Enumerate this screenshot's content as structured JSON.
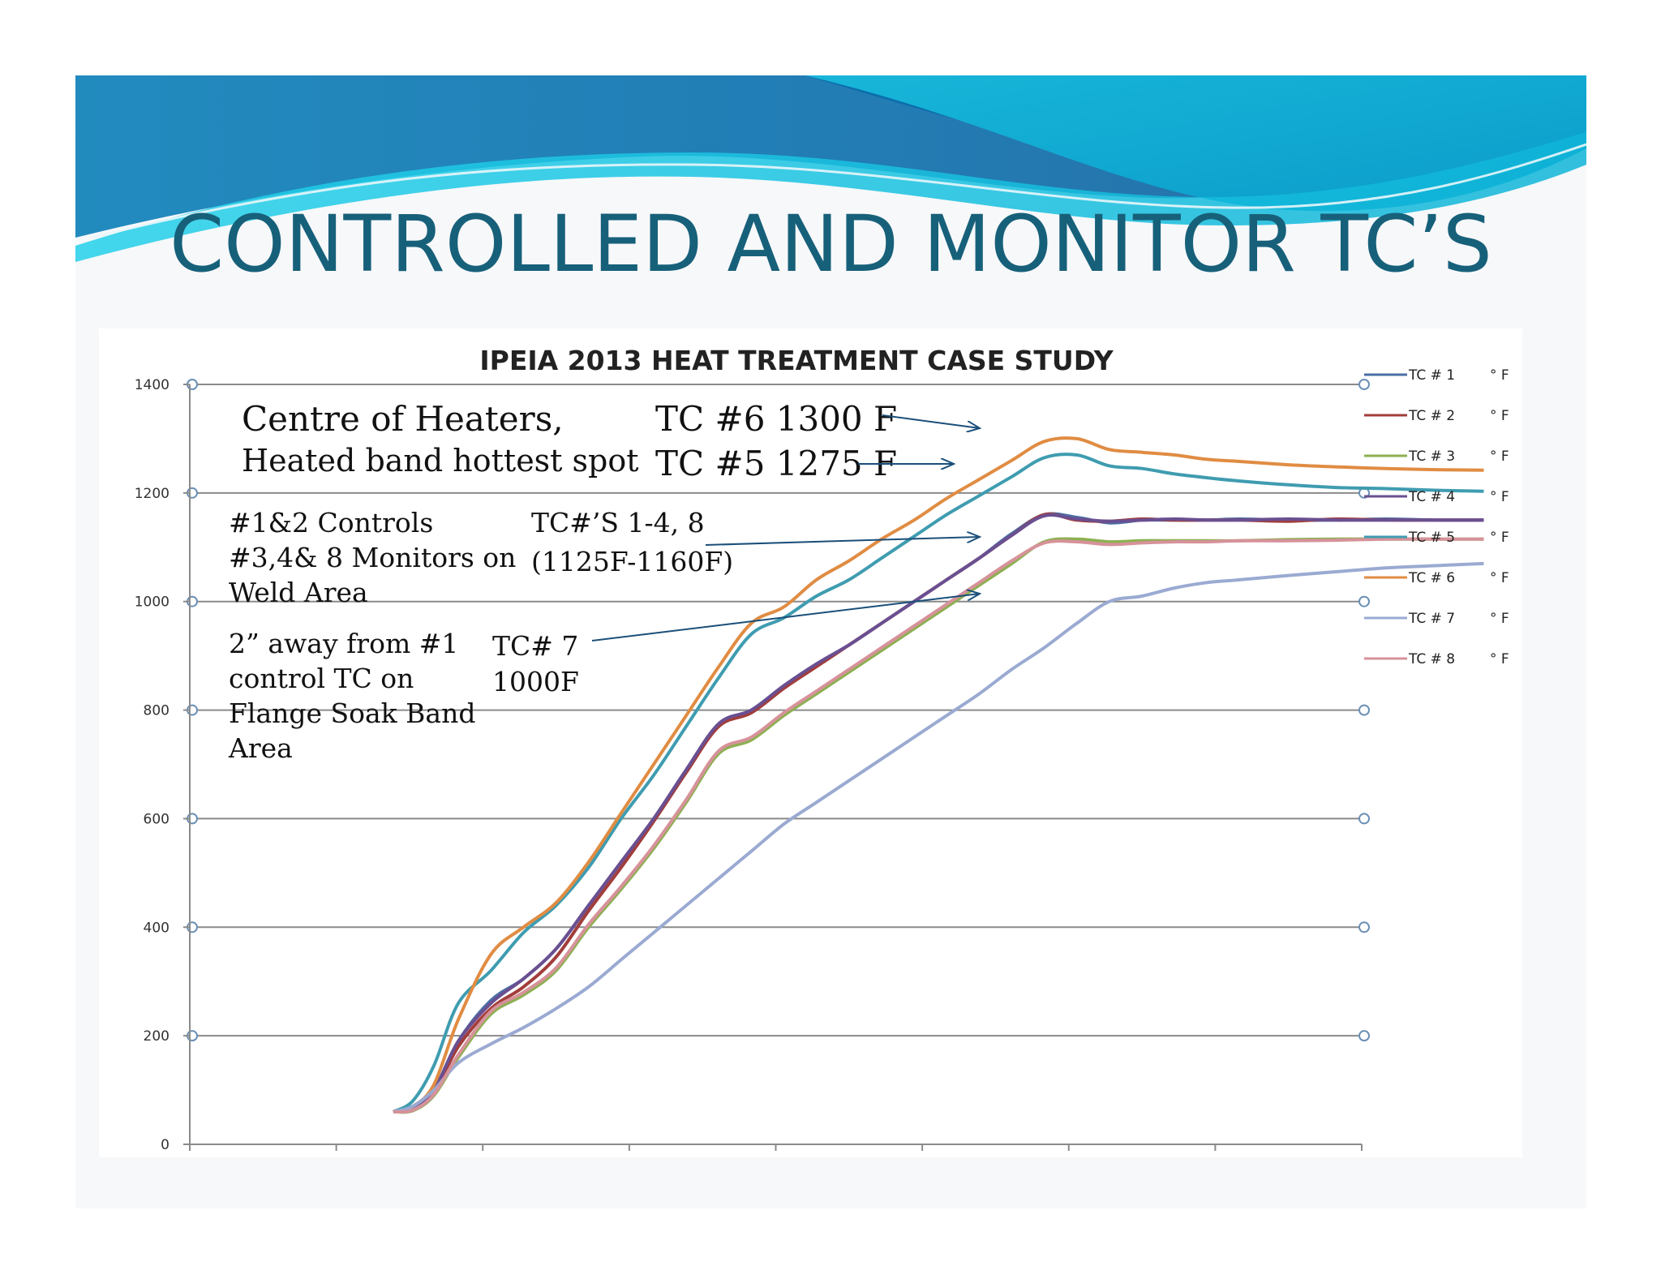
{
  "slide": {
    "title": "CONTROLLED AND MONITOR TC’S"
  },
  "annotations": {
    "centre_line1": "Centre of Heaters,",
    "centre_line2": "Heated band hottest spot",
    "tc6": "TC #6 1300 F",
    "tc5": "TC #5 1275 F",
    "controls_line1": "#1&2 Controls",
    "controls_line2": "#3,4& 8 Monitors on",
    "controls_line3": "Weld Area",
    "tc14_line1": "TC#’S 1-4, 8",
    "tc14_line2": "(1125F-1160F)",
    "away_line1": "2” away from #1",
    "away_line2": "control TC on",
    "away_line3": "Flange Soak Band",
    "away_line4": "Area",
    "tc7_line1": "TC# 7",
    "tc7_line2": "1000F"
  },
  "chart_data": {
    "type": "line",
    "title": "IPEIA 2013 HEAT TREATMENT CASE STUDY",
    "xlabel": "",
    "ylabel": "",
    "ylim": [
      0,
      1400
    ],
    "yticks": [
      "0",
      "200",
      "400",
      "600",
      "800",
      "1000",
      "1200",
      "1400"
    ],
    "grid": true,
    "legend_position": "right",
    "x": [
      0.0,
      0.12,
      0.25,
      0.4,
      0.6,
      0.8,
      1.0,
      1.2,
      1.4,
      1.6,
      1.8,
      2.0,
      2.2,
      2.4,
      2.6,
      2.8,
      3.0,
      3.2,
      3.4,
      3.6,
      3.8,
      4.0,
      4.2,
      4.4,
      4.6,
      4.8,
      5.0,
      5.2,
      5.5,
      5.8,
      6.1,
      6.4,
      6.7
    ],
    "series": [
      {
        "name": "TC # 1",
        "unit": "° F",
        "color": "#4a6ea6",
        "values": [
          60,
          70,
          100,
          190,
          265,
          305,
          360,
          440,
          520,
          600,
          690,
          775,
          800,
          845,
          885,
          920,
          960,
          1000,
          1040,
          1080,
          1125,
          1160,
          1155,
          1145,
          1150,
          1150,
          1150,
          1152,
          1150,
          1150,
          1152,
          1150,
          1150
        ]
      },
      {
        "name": "TC # 2",
        "unit": "° F",
        "color": "#a23d3b",
        "values": [
          60,
          65,
          95,
          180,
          250,
          290,
          345,
          430,
          510,
          595,
          685,
          770,
          795,
          840,
          880,
          920,
          960,
          1000,
          1040,
          1080,
          1122,
          1160,
          1150,
          1148,
          1152,
          1150,
          1150,
          1150,
          1148,
          1152,
          1150,
          1150,
          1150
        ]
      },
      {
        "name": "TC # 3",
        "unit": "° F",
        "color": "#8db052",
        "values": [
          60,
          62,
          90,
          160,
          240,
          275,
          320,
          400,
          470,
          545,
          630,
          720,
          745,
          790,
          830,
          870,
          910,
          950,
          990,
          1030,
          1070,
          1110,
          1115,
          1110,
          1112,
          1112,
          1112,
          1112,
          1114,
          1115,
          1115,
          1115,
          1115
        ]
      },
      {
        "name": "TC # 4",
        "unit": "° F",
        "color": "#6a4f91",
        "values": [
          60,
          68,
          100,
          190,
          260,
          305,
          360,
          440,
          520,
          600,
          690,
          775,
          800,
          845,
          885,
          920,
          960,
          1000,
          1040,
          1080,
          1122,
          1158,
          1152,
          1148,
          1150,
          1152,
          1150,
          1150,
          1152,
          1150,
          1150,
          1150,
          1150
        ]
      },
      {
        "name": "TC # 5",
        "unit": "° F",
        "color": "#3f9cb0",
        "values": [
          60,
          80,
          145,
          260,
          320,
          390,
          440,
          510,
          600,
          680,
          770,
          860,
          940,
          970,
          1010,
          1040,
          1080,
          1120,
          1160,
          1195,
          1230,
          1265,
          1270,
          1250,
          1245,
          1235,
          1228,
          1222,
          1215,
          1210,
          1208,
          1205,
          1203
        ]
      },
      {
        "name": "TC # 6",
        "unit": "° F",
        "color": "#e08c43",
        "values": [
          60,
          70,
          110,
          230,
          350,
          400,
          445,
          520,
          610,
          700,
          790,
          880,
          960,
          990,
          1040,
          1075,
          1115,
          1150,
          1190,
          1225,
          1260,
          1295,
          1300,
          1280,
          1275,
          1270,
          1262,
          1258,
          1252,
          1248,
          1245,
          1243,
          1242
        ]
      },
      {
        "name": "TC # 7",
        "unit": "° F",
        "color": "#9aaad2",
        "values": [
          60,
          70,
          100,
          150,
          185,
          215,
          250,
          290,
          340,
          390,
          440,
          490,
          540,
          590,
          630,
          670,
          710,
          750,
          790,
          830,
          875,
          915,
          960,
          1000,
          1010,
          1025,
          1035,
          1040,
          1048,
          1055,
          1062,
          1066,
          1070
        ]
      },
      {
        "name": "TC # 8",
        "unit": "° F",
        "color": "#d6929a",
        "values": [
          60,
          63,
          92,
          165,
          245,
          280,
          325,
          405,
          475,
          550,
          635,
          725,
          750,
          795,
          835,
          875,
          915,
          955,
          995,
          1035,
          1075,
          1108,
          1110,
          1105,
          1108,
          1110,
          1110,
          1112,
          1112,
          1113,
          1115,
          1115,
          1115
        ]
      }
    ]
  }
}
